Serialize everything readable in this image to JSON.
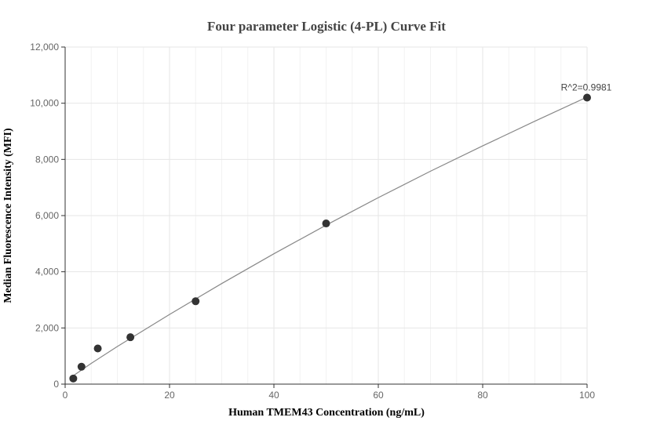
{
  "chart_data": {
    "type": "scatter",
    "title": "Four parameter Logistic (4-PL) Curve Fit",
    "xlabel": "Human TMEM43 Concentration (ng/mL)",
    "ylabel": "Median Fluorescence Intensity (MFI)",
    "xlim": [
      0,
      100
    ],
    "ylim": [
      0,
      12000
    ],
    "x_ticks": [
      0,
      20,
      40,
      60,
      80,
      100
    ],
    "x_tick_labels": [
      "0",
      "20",
      "40",
      "60",
      "80",
      "100"
    ],
    "y_ticks": [
      0,
      2000,
      4000,
      6000,
      8000,
      10000,
      12000
    ],
    "y_tick_labels": [
      "0",
      "2,000",
      "4,000",
      "6,000",
      "8,000",
      "10,000",
      "12,000"
    ],
    "grid": true,
    "points": [
      {
        "x": 1.56,
        "y": 200
      },
      {
        "x": 3.13,
        "y": 620
      },
      {
        "x": 6.25,
        "y": 1270
      },
      {
        "x": 12.5,
        "y": 1670
      },
      {
        "x": 25,
        "y": 2950
      },
      {
        "x": 50,
        "y": 5720
      },
      {
        "x": 100,
        "y": 10200
      }
    ],
    "fit_curve": {
      "model": "4PL",
      "x": [
        1.56,
        5,
        10,
        20,
        30,
        40,
        50,
        60,
        70,
        80,
        90,
        100
      ],
      "y": [
        300,
        740,
        1340,
        2480,
        3580,
        4640,
        5660,
        6640,
        7580,
        8480,
        9360,
        10220
      ]
    },
    "annotation": {
      "text": "R^2=0.9981",
      "x": 100,
      "y": 10200
    },
    "colors": {
      "point": "#333333",
      "curve": "#888888",
      "grid": "#e6e6e6",
      "axis": "#333333"
    }
  }
}
